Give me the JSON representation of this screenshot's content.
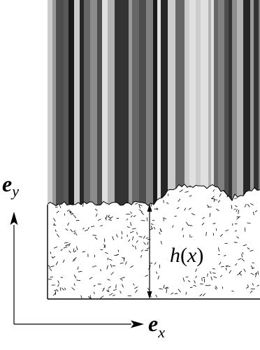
{
  "diagram": {
    "height_label": {
      "main": "h",
      "open": "(",
      "arg": "x",
      "close": ")"
    },
    "axis_x": {
      "vector": "e",
      "subscript": "x"
    },
    "axis_y": {
      "vector": "e",
      "subscript": "y"
    },
    "colors": {
      "line": "#000000",
      "background": "#ffffff",
      "stripe_palette": [
        "#1a1a1a",
        "#333333",
        "#4d4d4d",
        "#666666",
        "#808080",
        "#999999",
        "#b3b3b3",
        "#cccccc",
        "#e0e0e0",
        "#262626",
        "#595959",
        "#8c8c8c"
      ]
    }
  }
}
